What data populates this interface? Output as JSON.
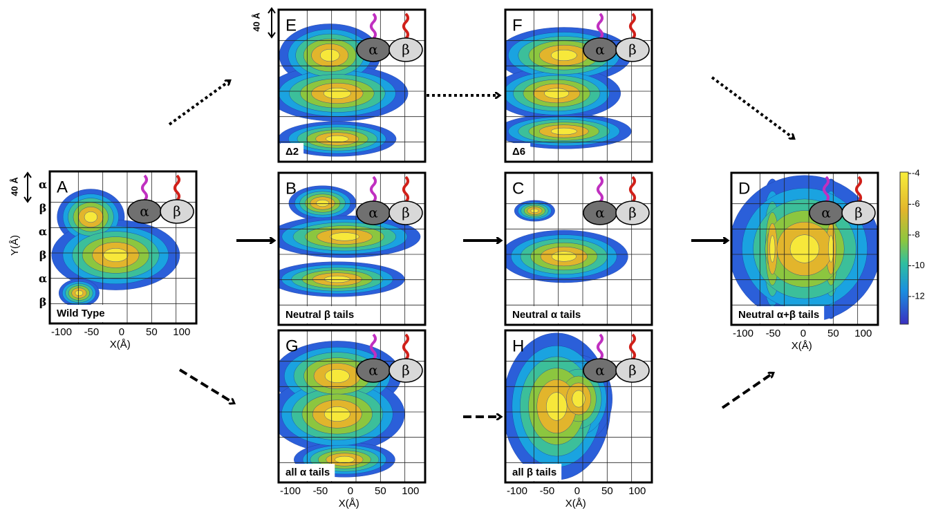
{
  "panels": [
    {
      "letter": "A",
      "label": "Wild Type"
    },
    {
      "letter": "E",
      "label": "Δ2"
    },
    {
      "letter": "F",
      "label": "Δ6"
    },
    {
      "letter": "B",
      "label": "Neutral β tails"
    },
    {
      "letter": "C",
      "label": "Neutral α tails"
    },
    {
      "letter": "D",
      "label": "Neutral α+β tails"
    },
    {
      "letter": "G",
      "label": "all α tails"
    },
    {
      "letter": "H",
      "label": "all β tails"
    }
  ],
  "tails": {
    "alpha": "α",
    "beta": "β"
  },
  "y_axis": {
    "title": "Y(Å)",
    "labels": [
      "α",
      "β",
      "α",
      "β",
      "α",
      "β"
    ],
    "scale": "40 Å"
  },
  "x_axis": {
    "title": "X(Å)",
    "ticks": [
      "-100",
      "-50",
      "0",
      "50",
      "100"
    ]
  },
  "colorbar": {
    "ticks": [
      "-4",
      "-6",
      "-8",
      "-10",
      "-12"
    ]
  }
}
